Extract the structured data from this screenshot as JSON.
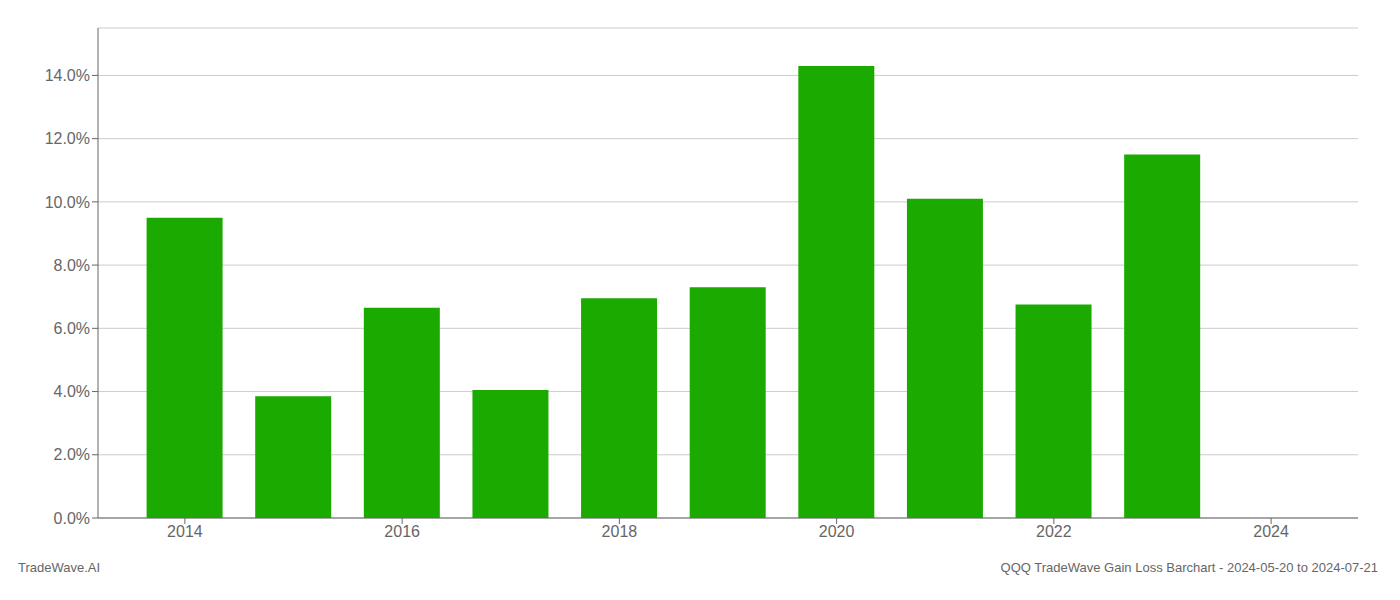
{
  "chart_data": {
    "type": "bar",
    "x": [
      2014,
      2015,
      2016,
      2017,
      2018,
      2019,
      2020,
      2021,
      2022,
      2023
    ],
    "values": [
      0.095,
      0.0385,
      0.0665,
      0.0405,
      0.0695,
      0.073,
      0.143,
      0.101,
      0.0675,
      0.115
    ],
    "color": "#1aaa00",
    "xlim": [
      2013.2,
      2024.8
    ],
    "xticks": [
      2014,
      2016,
      2018,
      2020,
      2022,
      2024
    ],
    "ylim": [
      0,
      0.155
    ],
    "yticks": [
      {
        "value": 0.0,
        "label": "0.0%"
      },
      {
        "value": 0.02,
        "label": "2.0%"
      },
      {
        "value": 0.04,
        "label": "4.0%"
      },
      {
        "value": 0.06,
        "label": "6.0%"
      },
      {
        "value": 0.08,
        "label": "8.0%"
      },
      {
        "value": 0.1,
        "label": "10.0%"
      },
      {
        "value": 0.12,
        "label": "12.0%"
      },
      {
        "value": 0.14,
        "label": "14.0%"
      }
    ],
    "grid": true,
    "annotations": [
      "TradeWave.AI",
      "QQQ TradeWave Gain Loss Barchart - 2024-05-20 to 2024-07-21"
    ]
  }
}
